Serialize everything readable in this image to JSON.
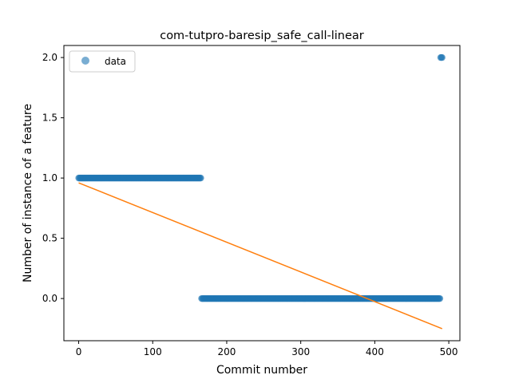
{
  "chart_data": {
    "type": "scatter",
    "title": "com-tutpro-baresip_safe_call-linear",
    "xlabel": "Commit number",
    "ylabel": "Number of instance of a feature",
    "xlim": [
      -20,
      515
    ],
    "ylim": [
      -0.35,
      2.1
    ],
    "xticks": [
      0,
      100,
      200,
      300,
      400,
      500
    ],
    "yticks": [
      0.0,
      0.5,
      1.0,
      1.5,
      2.0
    ],
    "xtick_labels": [
      "0",
      "100",
      "200",
      "300",
      "400",
      "500"
    ],
    "ytick_labels": [
      "0.0",
      "0.5",
      "1.0",
      "1.5",
      "2.0"
    ],
    "grid": false,
    "legend": {
      "position": "upper-left",
      "entries": [
        "data"
      ]
    },
    "colors": {
      "data": "#1f77b4",
      "fit": "#ff7f0e"
    },
    "series": [
      {
        "name": "data",
        "kind": "scatter",
        "segments": [
          {
            "x_start": 0,
            "x_end": 165,
            "y": 1.0
          },
          {
            "x_start": 166,
            "x_end": 488,
            "y": 0.0
          },
          {
            "x_start": 489,
            "x_end": 491,
            "y": 2.0
          }
        ]
      },
      {
        "kind": "line",
        "x": [
          0,
          491
        ],
        "y": [
          0.96,
          -0.25
        ]
      }
    ]
  }
}
